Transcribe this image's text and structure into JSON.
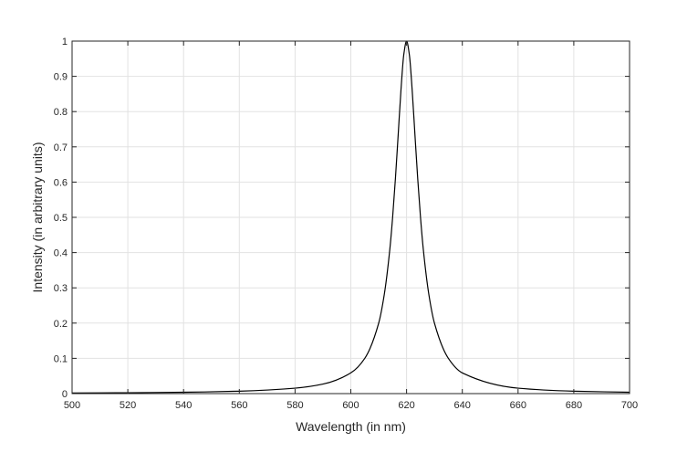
{
  "chart_data": {
    "type": "line",
    "title": "",
    "xlabel": "Wavelength (in nm)",
    "ylabel": "Intensity (in arbitrary units)",
    "xlim": [
      500,
      700
    ],
    "ylim": [
      0,
      1
    ],
    "xticks": [
      500,
      520,
      540,
      560,
      580,
      600,
      620,
      640,
      660,
      680,
      700
    ],
    "yticks": [
      0,
      0.1,
      0.2,
      0.3,
      0.4,
      0.5,
      0.6,
      0.7,
      0.8,
      0.9,
      1
    ],
    "ytick_labels": [
      "0",
      "0.1",
      "0.2",
      "0.3",
      "0.4",
      "0.5",
      "0.6",
      "0.7",
      "0.8",
      "0.9",
      "1"
    ],
    "xtick_labels": [
      "500",
      "520",
      "540",
      "560",
      "580",
      "600",
      "620",
      "640",
      "660",
      "680",
      "700"
    ],
    "grid": true,
    "series": [
      {
        "x": [
          500,
          520,
          540,
          560,
          580,
          590,
          600,
          605,
          610,
          612,
          614,
          615,
          616,
          617,
          618,
          619,
          620,
          621,
          622,
          623,
          624,
          625,
          626,
          628,
          630,
          635,
          640,
          660,
          680,
          700
        ],
        "y": [
          0.0017,
          0.0025,
          0.0039,
          0.0069,
          0.0154,
          0.027,
          0.0588,
          0.1,
          0.2,
          0.2809,
          0.4098,
          0.5,
          0.6098,
          0.7353,
          0.8621,
          0.9615,
          1.0,
          0.9615,
          0.8621,
          0.7353,
          0.6098,
          0.5,
          0.4098,
          0.2809,
          0.2,
          0.1,
          0.0588,
          0.0154,
          0.0069,
          0.0039
        ]
      }
    ]
  }
}
